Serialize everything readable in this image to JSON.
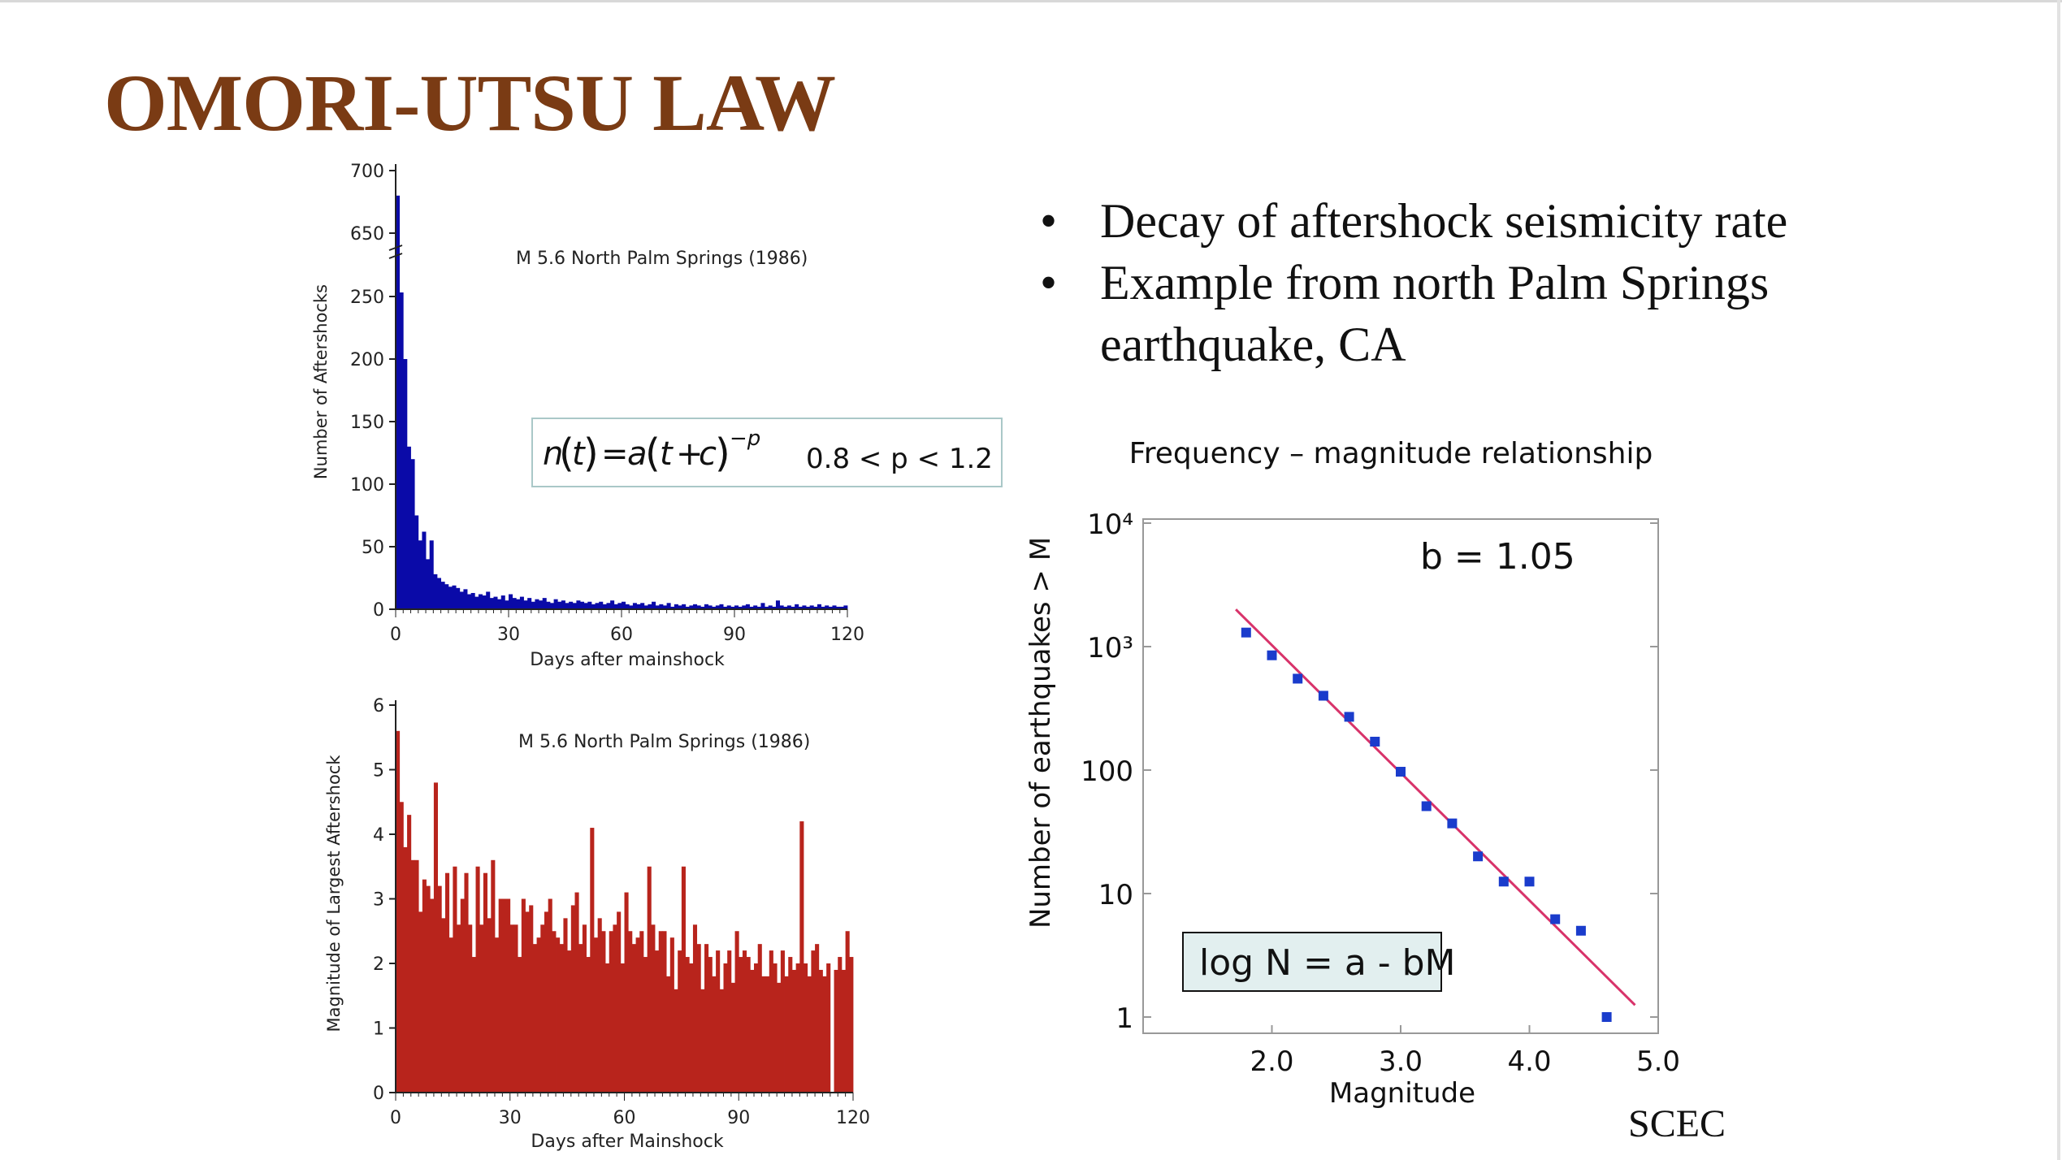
{
  "slide": {
    "title": "OMORI-UTSU LAW",
    "bullets": [
      "Decay of aftershock seismicity rate",
      "Example from north Palm Springs earthquake, CA"
    ],
    "credit": "SCEC",
    "colors": {
      "title": "#7a3b14",
      "bars_count": "#0a0aa8",
      "bars_magnitude": "#b8241c",
      "fit_line": "#d8336a",
      "points": "#1a3ccc"
    }
  },
  "formula": {
    "n": "n",
    "t": "t",
    "eq": "=",
    "a": "a",
    "plus": "+",
    "c": "c",
    "exp": "−p",
    "range": "0.8 < p < 1.2"
  },
  "chart_data": [
    {
      "type": "bar",
      "title": "M 5.6  North Palm Springs  (1986)",
      "xlabel": "Days after mainshock",
      "ylabel": "Number of Aftershocks",
      "xlim": [
        0,
        120
      ],
      "x_ticks": [
        0,
        30,
        60,
        90,
        120
      ],
      "y_ticks": [
        0,
        50,
        100,
        150,
        200,
        250,
        650,
        700
      ],
      "axis_break": "between 250 and 650",
      "bin_width_days": 1,
      "values": [
        680,
        270,
        200,
        130,
        120,
        75,
        55,
        62,
        40,
        55,
        28,
        25,
        22,
        20,
        18,
        19,
        17,
        14,
        16,
        12,
        13,
        10,
        12,
        11,
        14,
        9,
        10,
        8,
        11,
        7,
        12,
        9,
        8,
        10,
        7,
        9,
        6,
        8,
        7,
        9,
        6,
        5,
        8,
        6,
        7,
        5,
        6,
        5,
        7,
        6,
        5,
        6,
        4,
        5,
        6,
        4,
        5,
        7,
        4,
        5,
        6,
        4,
        3,
        5,
        4,
        5,
        3,
        4,
        6,
        3,
        4,
        3,
        5,
        2,
        4,
        3,
        4,
        2,
        3,
        4,
        3,
        2,
        4,
        3,
        2,
        3,
        4,
        2,
        3,
        2,
        3,
        2,
        3,
        4,
        2,
        3,
        2,
        5,
        2,
        3,
        2,
        7,
        3,
        2,
        3,
        2,
        4,
        2,
        3,
        2,
        3,
        2,
        4,
        2,
        3,
        2,
        3,
        2,
        2,
        3
      ]
    },
    {
      "type": "bar",
      "title": "M 5.6  North Palm Springs  (1986)",
      "xlabel": "Days after Mainshock",
      "ylabel": "Magnitude of Largest Aftershock",
      "xlim": [
        0,
        120
      ],
      "ylim": [
        0,
        6
      ],
      "x_ticks": [
        0,
        30,
        60,
        90,
        120
      ],
      "y_ticks": [
        0,
        1,
        2,
        3,
        4,
        5,
        6
      ],
      "bin_width_days": 1,
      "values": [
        5.6,
        4.5,
        3.8,
        4.3,
        3.6,
        3.6,
        2.8,
        3.3,
        3.2,
        3.0,
        4.8,
        3.2,
        2.7,
        3.4,
        2.4,
        3.5,
        2.6,
        3.0,
        3.4,
        2.6,
        2.1,
        3.5,
        2.6,
        3.4,
        2.7,
        3.6,
        2.4,
        3.0,
        3.0,
        3.0,
        2.6,
        2.6,
        2.1,
        3.0,
        2.8,
        2.9,
        2.3,
        2.4,
        2.6,
        2.8,
        3.0,
        2.5,
        2.4,
        2.3,
        2.7,
        2.2,
        2.9,
        3.1,
        2.3,
        2.6,
        2.1,
        4.1,
        2.4,
        2.7,
        2.5,
        2.0,
        2.5,
        2.6,
        2.8,
        2.0,
        3.1,
        2.5,
        2.3,
        2.4,
        2.5,
        2.1,
        3.5,
        2.6,
        2.2,
        2.5,
        2.5,
        1.8,
        2.4,
        1.6,
        2.2,
        3.5,
        2.1,
        2.0,
        2.6,
        2.3,
        1.6,
        2.3,
        2.1,
        1.8,
        2.2,
        1.6,
        2.0,
        2.2,
        1.7,
        2.5,
        2.1,
        2.2,
        2.1,
        1.9,
        2.0,
        2.3,
        1.8,
        1.8,
        2.2,
        2.0,
        1.7,
        2.2,
        1.8,
        2.1,
        1.9,
        2.0,
        4.2,
        2.0,
        1.8,
        2.2,
        2.3,
        1.9,
        1.8,
        2.0,
        0.0,
        1.9,
        2.1,
        1.9,
        2.5,
        2.1
      ]
    },
    {
      "type": "scatter",
      "title": "Frequency – magnitude relationship",
      "xlabel": "Magnitude",
      "ylabel": "Number of earthquakes > M",
      "xlim": [
        1.0,
        5.0
      ],
      "ylim": [
        1,
        10000
      ],
      "yscale": "log",
      "x_ticks": [
        "2.0",
        "3.0",
        "4.0",
        "5.0"
      ],
      "y_ticks": [
        "1",
        "10",
        "100",
        "10³",
        "10⁴"
      ],
      "annotation": "b = 1.05",
      "equation": "log N = a - bM",
      "x": [
        1.8,
        2.0,
        2.2,
        2.4,
        2.6,
        2.8,
        3.0,
        3.2,
        3.4,
        3.6,
        3.8,
        4.0,
        4.2,
        4.4,
        4.6
      ],
      "y": [
        1300,
        850,
        550,
        400,
        270,
        170,
        97,
        51,
        37,
        20,
        12.5,
        12.5,
        6.2,
        5.0,
        1.0
      ],
      "fit_line": {
        "x": [
          1.72,
          4.82
        ],
        "y": [
          2000,
          1.25
        ]
      }
    }
  ]
}
